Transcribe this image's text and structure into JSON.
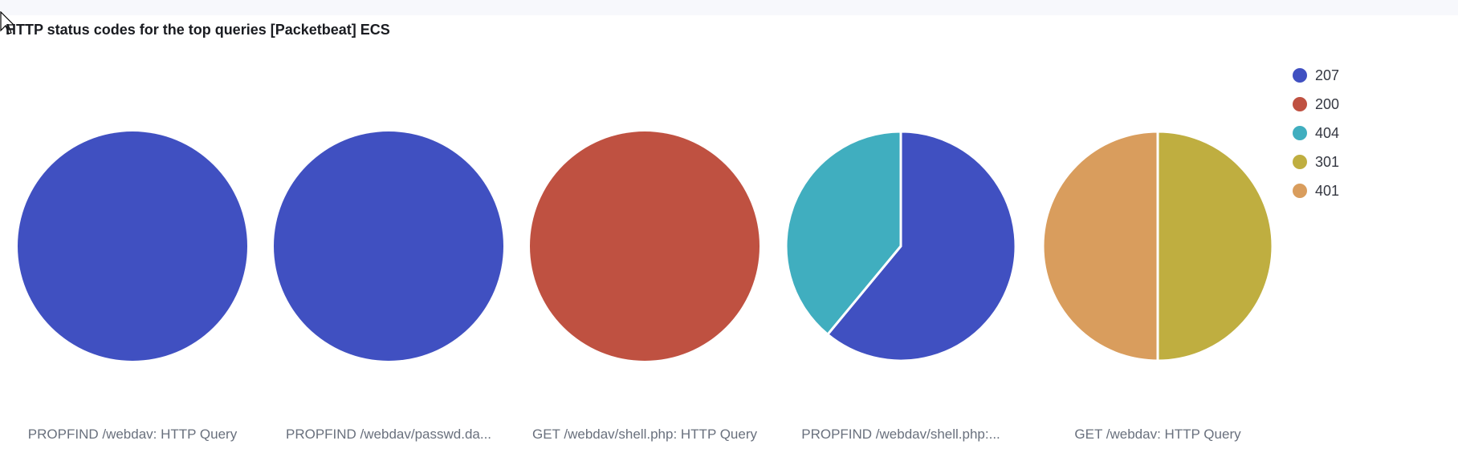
{
  "panel": {
    "title": "HTTP status codes for the top queries [Packetbeat] ECS"
  },
  "colors": {
    "207": "#4050c1",
    "200": "#bf5141",
    "404": "#40aebf",
    "301": "#bfae40",
    "401": "#d99d5d"
  },
  "chart_data": {
    "type": "pie",
    "legend": {
      "placement": "top-right",
      "entries": [
        "207",
        "200",
        "404",
        "301",
        "401"
      ]
    },
    "pies": [
      {
        "label": "PROPFIND /webdav: HTTP Query",
        "slices": [
          {
            "name": "207",
            "value": 100
          }
        ]
      },
      {
        "label": "PROPFIND /webdav/passwd.da...",
        "slices": [
          {
            "name": "207",
            "value": 100
          }
        ]
      },
      {
        "label": "GET /webdav/shell.php: HTTP Query",
        "slices": [
          {
            "name": "200",
            "value": 100
          }
        ]
      },
      {
        "label": "PROPFIND /webdav/shell.php:...",
        "slices": [
          {
            "name": "207",
            "value": 61
          },
          {
            "name": "404",
            "value": 39
          }
        ]
      },
      {
        "label": "GET /webdav: HTTP Query",
        "slices": [
          {
            "name": "301",
            "value": 50
          },
          {
            "name": "401",
            "value": 50
          }
        ]
      }
    ]
  }
}
